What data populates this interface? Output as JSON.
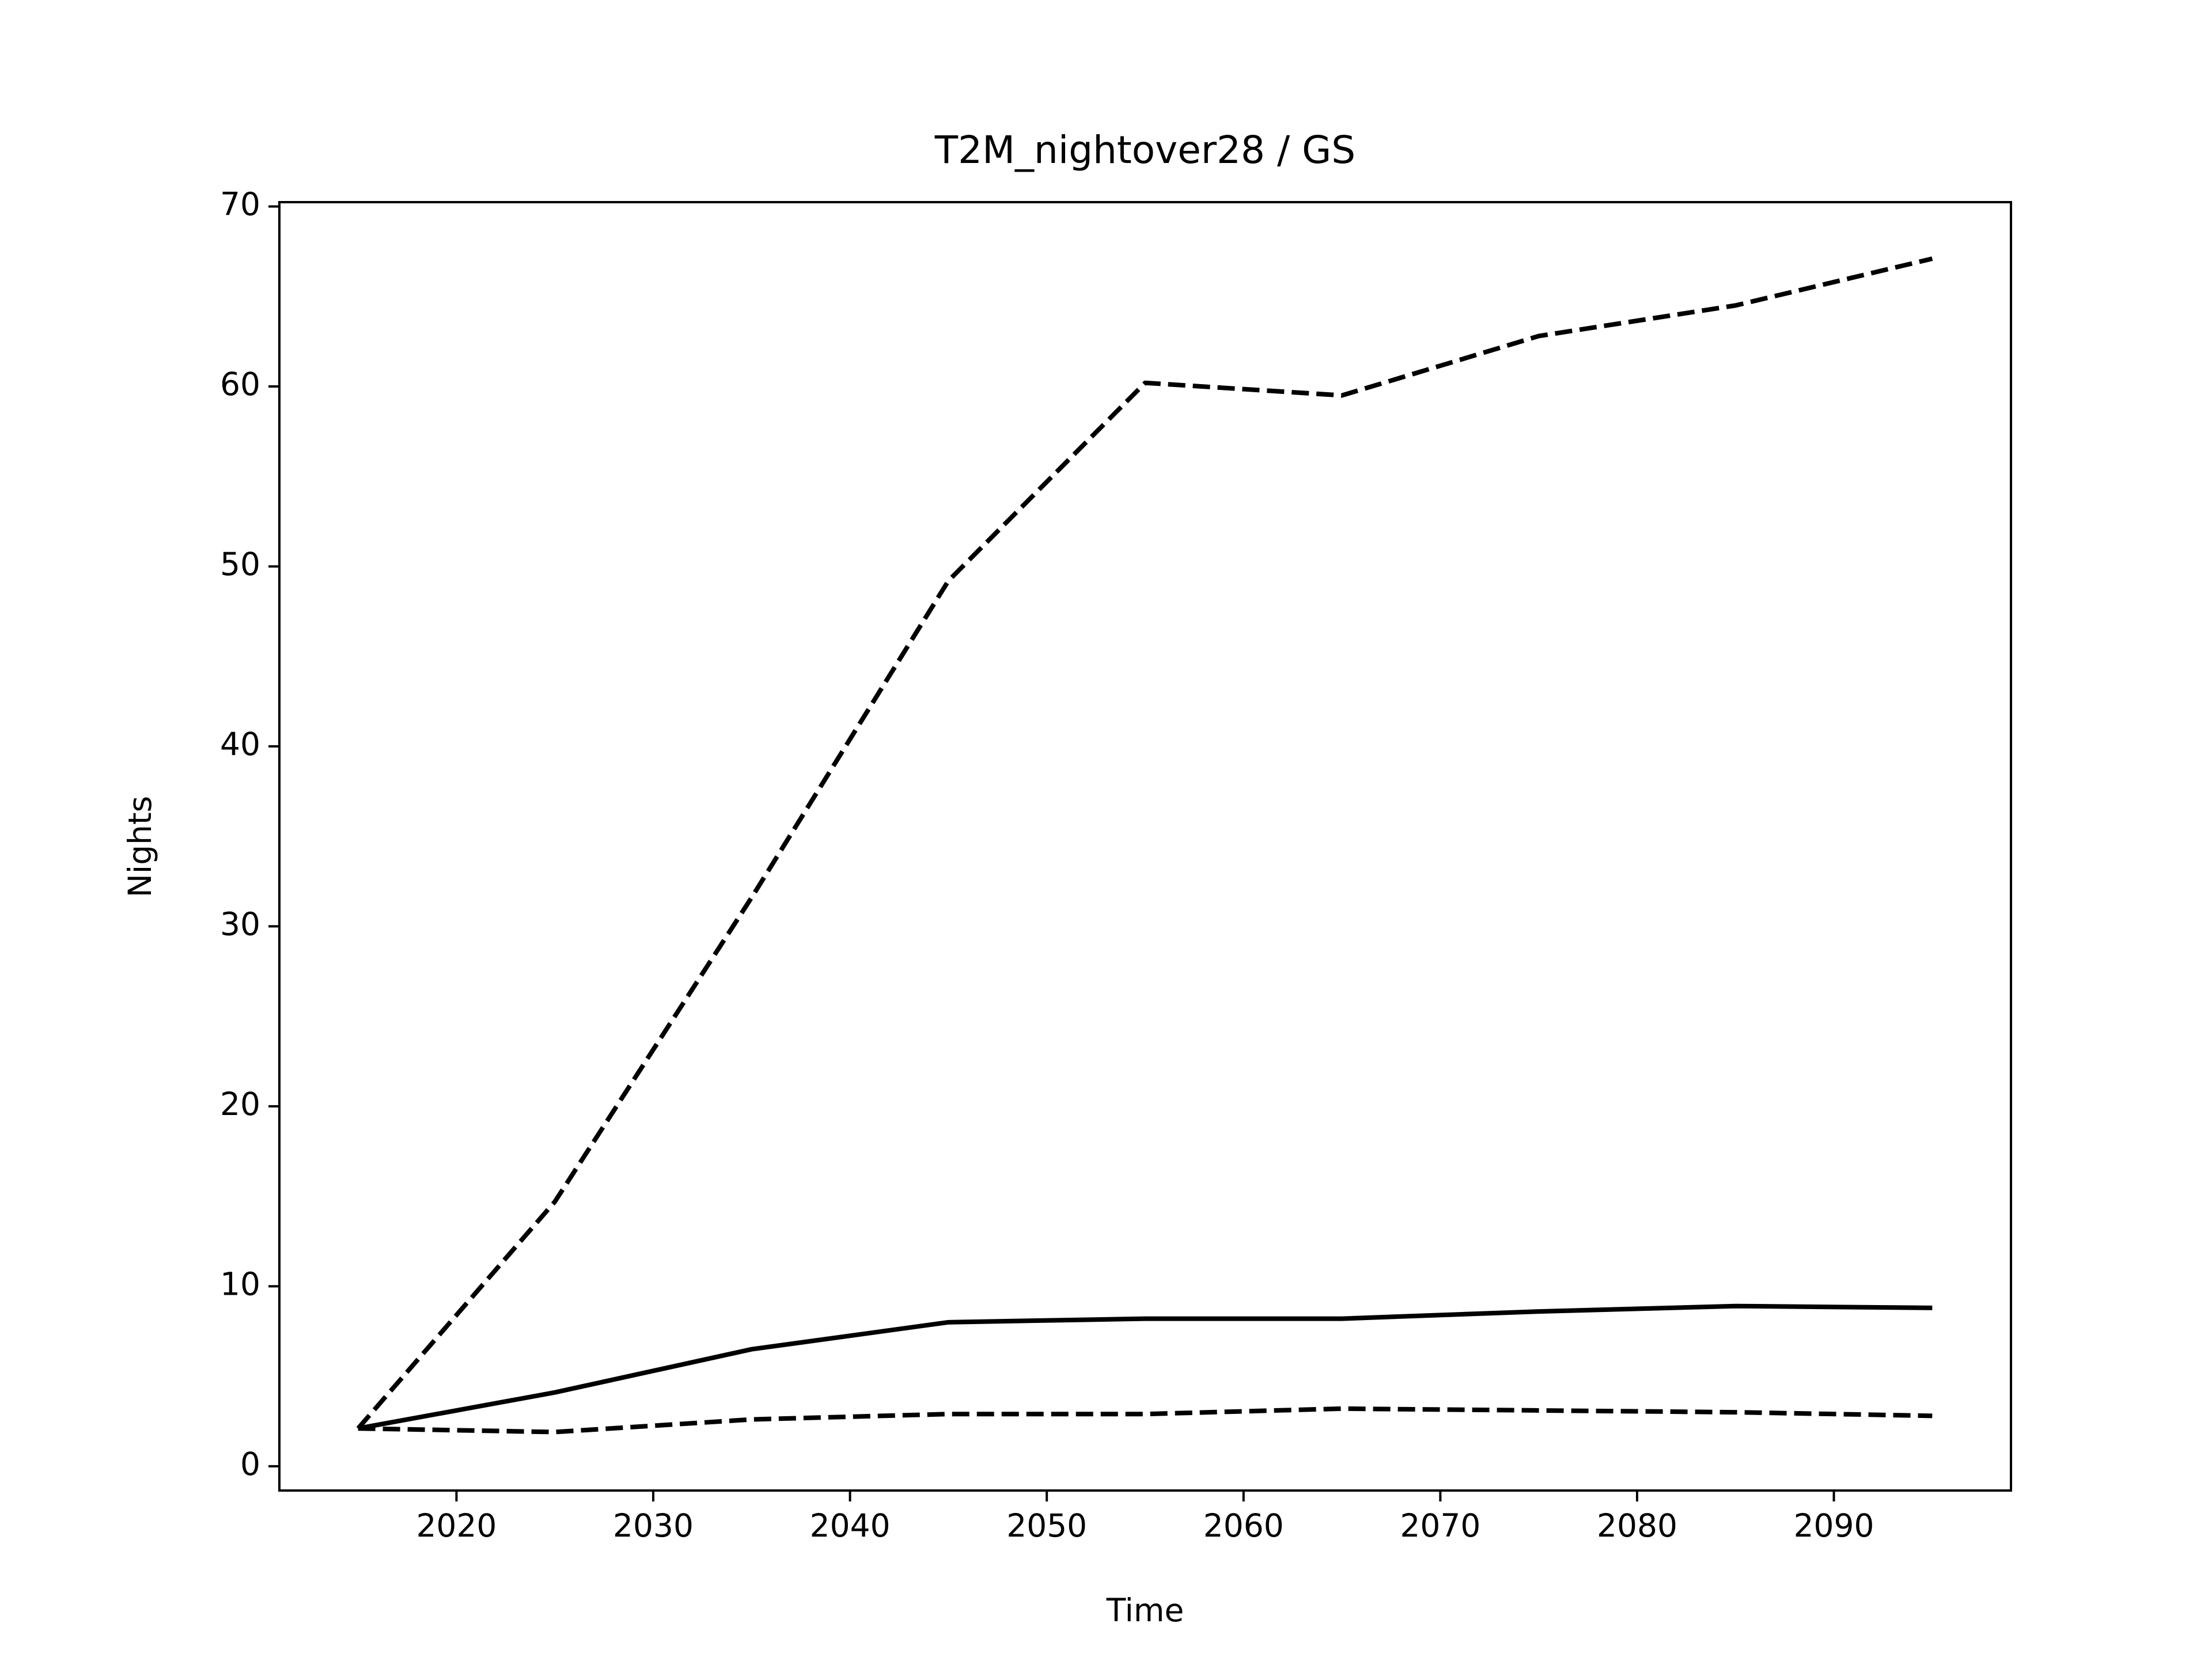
{
  "chart_data": {
    "type": "line",
    "title": "T2M_nightover28 / GS",
    "x_label": "Time",
    "y_label": "Nights",
    "x": [
      2015,
      2025,
      2035,
      2045,
      2055,
      2065,
      2075,
      2085,
      2095
    ],
    "series": [
      {
        "color": "#000000",
        "dash": true,
        "values": [
          2.1,
          14.7,
          31.6,
          49.2,
          60.2,
          59.5,
          62.8,
          64.5,
          67.1
        ]
      },
      {
        "color": "#000000",
        "dash": false,
        "values": [
          2.1,
          4.1,
          6.5,
          8.0,
          8.2,
          8.2,
          8.6,
          8.9,
          8.8
        ]
      },
      {
        "color": "#000000",
        "dash": true,
        "values": [
          2.1,
          1.9,
          2.6,
          2.9,
          2.9,
          3.2,
          3.1,
          3.0,
          2.8
        ]
      }
    ],
    "xlim": [
      2011,
      2099
    ],
    "xticks": [
      2020,
      2030,
      2040,
      2050,
      2060,
      2070,
      2080,
      2090
    ],
    "ylim": [
      -1.35,
      70.24
    ],
    "yticks": [
      0,
      10,
      20,
      30,
      40,
      50,
      60,
      70
    ],
    "grid": false
  }
}
